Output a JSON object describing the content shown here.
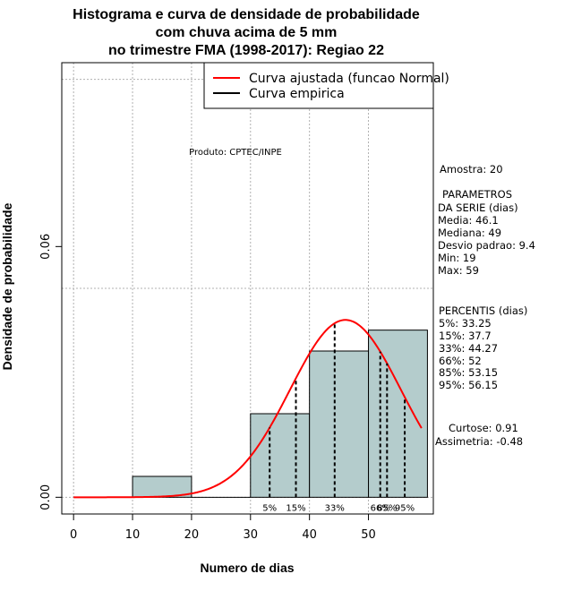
{
  "chart_data": {
    "type": "bar",
    "title_lines": [
      "Histograma e curva de densidade de probabilidade",
      "com chuva acima de 5 mm",
      "no trimestre FMA (1998-2017): Regiao 22"
    ],
    "xlabel": "Numero de dias",
    "ylabel": "Densidade de probabilidade",
    "xlim": [
      -2,
      61
    ],
    "ylim": [
      -0.004,
      0.104
    ],
    "x_ticks": [
      0,
      10,
      20,
      30,
      40,
      50
    ],
    "y_ticks": [
      0.0,
      0.06
    ],
    "y_tick_labels": [
      "0.00",
      "0.06"
    ],
    "grid": true,
    "grid_x": [
      0,
      10,
      20,
      30,
      40,
      50
    ],
    "grid_y": [
      0.0,
      0.05,
      0.1
    ],
    "bins": [
      [
        10,
        20
      ],
      [
        20,
        30
      ],
      [
        30,
        40
      ],
      [
        40,
        50
      ],
      [
        50,
        60
      ]
    ],
    "values": [
      0.005,
      0.0,
      0.02,
      0.035,
      0.04
    ],
    "bar_color": "#b4cccc",
    "normal_curve": {
      "mean": 46.1,
      "sd": 9.4,
      "x_from": 0,
      "x_to": 59,
      "color": "#ff0000"
    },
    "percentiles": [
      {
        "label": "5%",
        "x": 33.25
      },
      {
        "label": "15%",
        "x": 37.7
      },
      {
        "label": "33%",
        "x": 44.27
      },
      {
        "label": "66%",
        "x": 52
      },
      {
        "label": "85%",
        "x": 53.15
      },
      {
        "label": "95%",
        "x": 56.15
      }
    ],
    "legend": {
      "position": "top-right",
      "entries": [
        {
          "label": "Curva ajustada (funcao Normal)",
          "color": "#ff0000"
        },
        {
          "label": "Curva empirica",
          "color": "#000000"
        }
      ]
    },
    "annotation": "Produto: CPTEC/INPE",
    "stats_panel": [
      "Amostra: 20",
      " PARAMETROS",
      "DA SERIE (dias)",
      "   Media: 46.1",
      "   Mediana: 49",
      "   Desvio padrao: 9.4",
      "   Min: 19",
      "   Max: 59",
      "PERCENTIS (dias)",
      "   5%: 33.25",
      "   15%: 37.7",
      "   33%: 44.27",
      "   66%: 52",
      "   85%: 53.15",
      "   95%: 56.15",
      "Curtose: 0.91",
      "Assimetria: -0.48"
    ]
  }
}
